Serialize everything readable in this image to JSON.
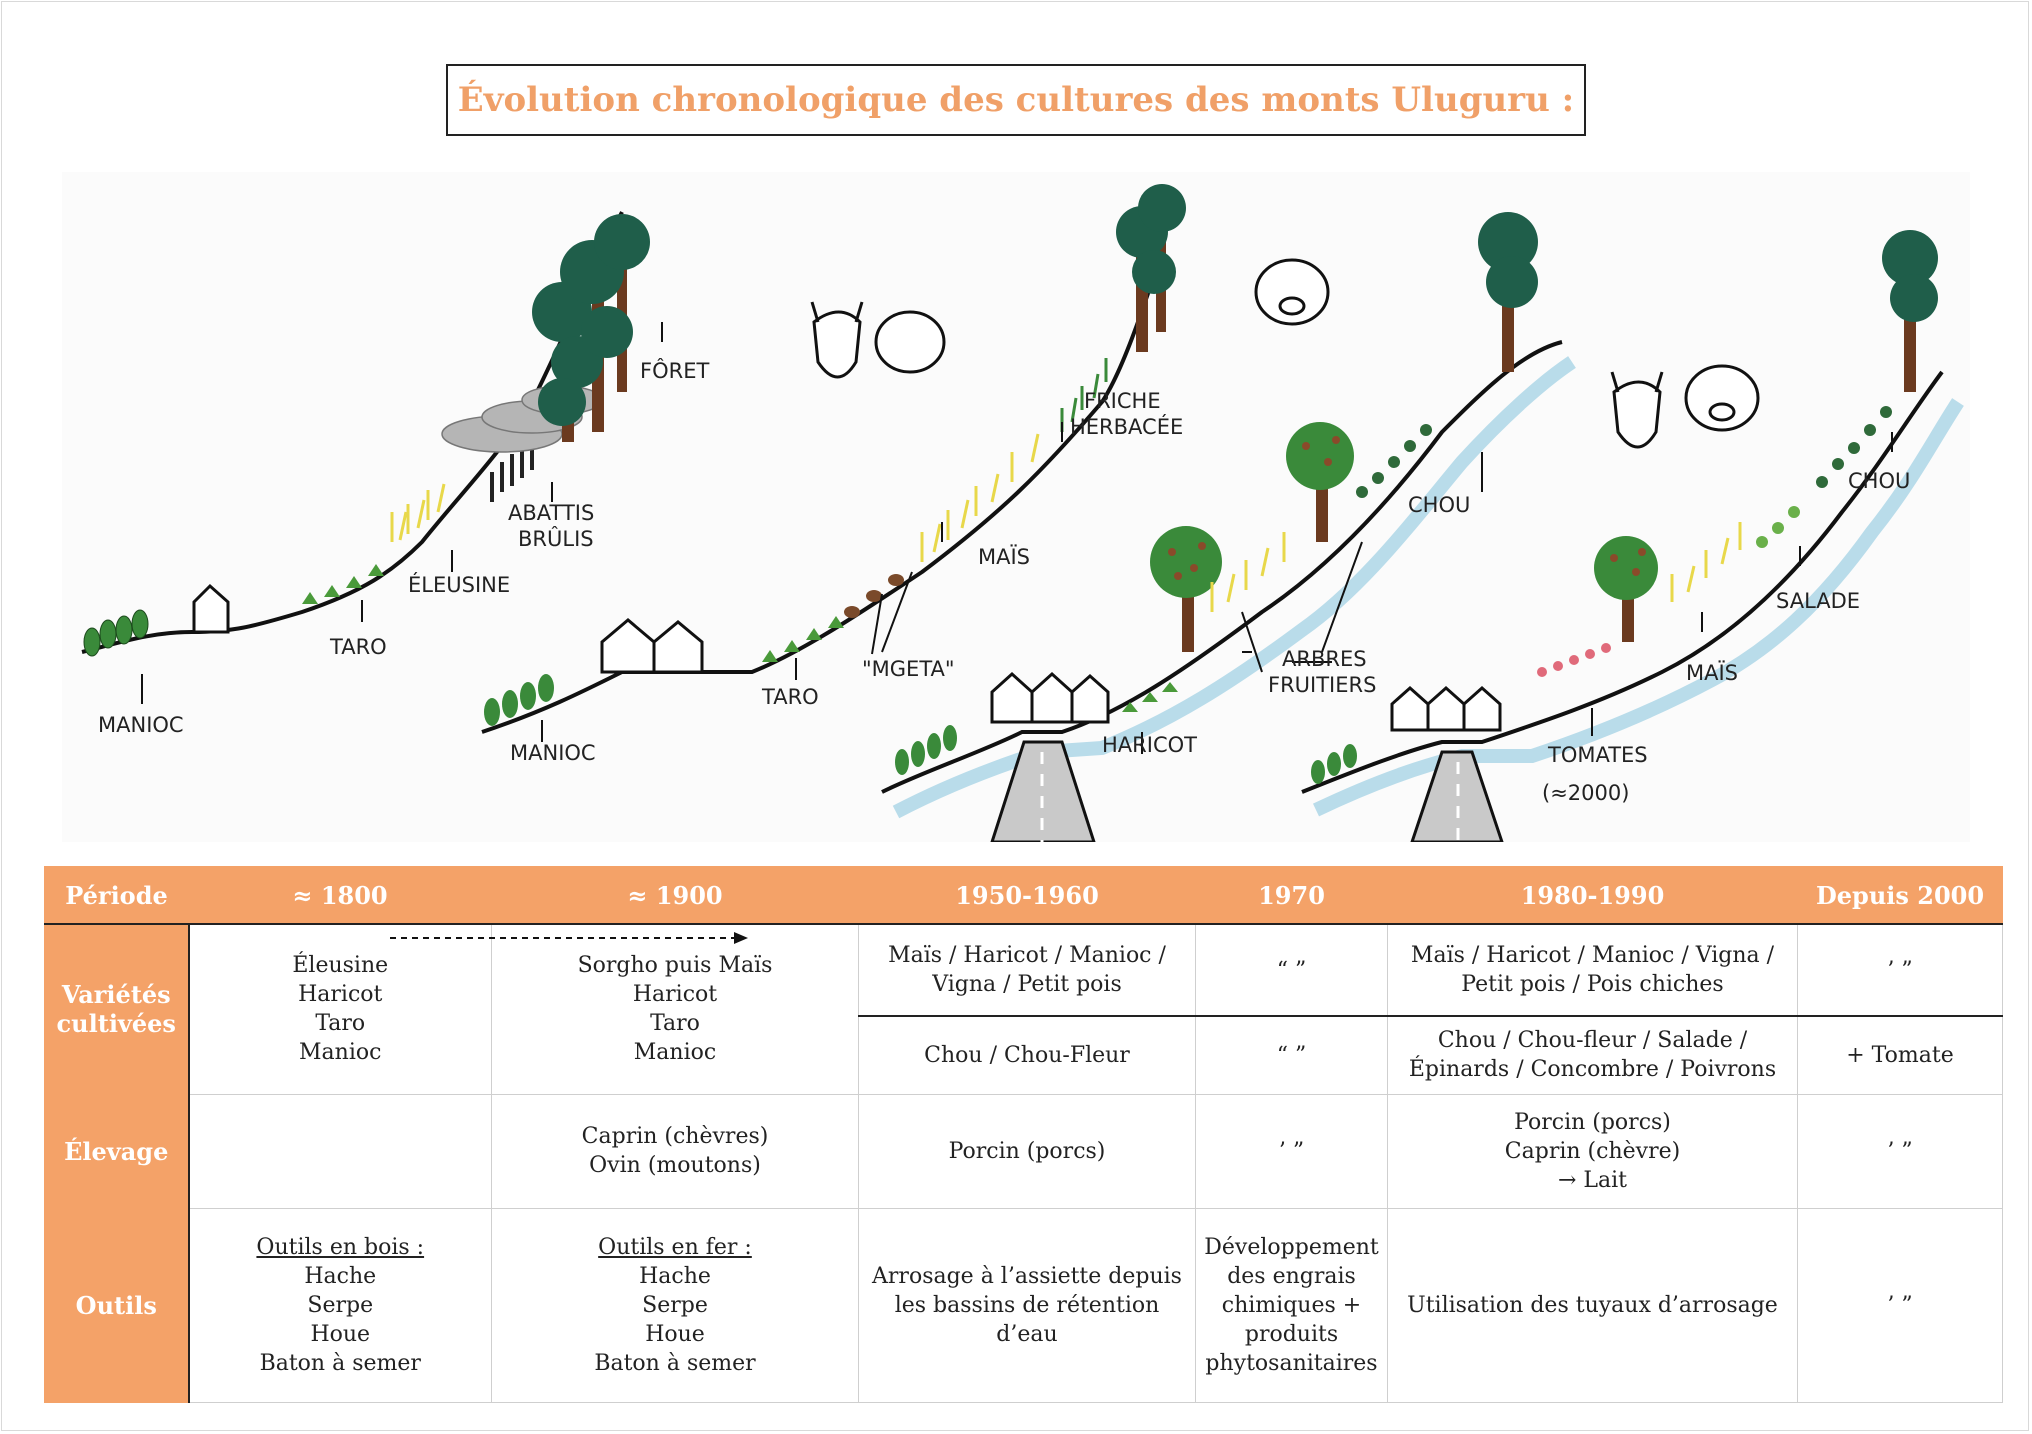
{
  "title": "Évolution chronologique des cultures des monts Uluguru :",
  "illustration": {
    "panel1": {
      "labels": {
        "manioc": "MANIOC",
        "taro": "TARO",
        "eleusine": "ÉLEUSINE",
        "abattis_1": "ABATTIS",
        "abattis_2": "BRÛLIS",
        "foret": "FÔRET"
      }
    },
    "panel2": {
      "labels": {
        "manioc": "MANIOC",
        "taro": "TARO",
        "mgeta": "\"MGETA\"",
        "mais": "MAÏS",
        "friche_1": "FRICHE",
        "friche_2": "HERBACÉE"
      }
    },
    "panel3": {
      "labels": {
        "haricot": "HARICOT",
        "arbres_1": "ARBRES",
        "arbres_2": "FRUITIERS",
        "chou": "CHOU"
      }
    },
    "panel4": {
      "labels": {
        "tomates_1": "TOMATES",
        "tomates_2": "(≈2000)",
        "mais": "MAÏS",
        "salade": "SALADE",
        "chou": "CHOU"
      }
    },
    "colors": {
      "tree": "#1f5e4a",
      "trunk": "#6b3a1f",
      "crop_green": "#3a8a3a",
      "crop_yellow": "#e8d84a",
      "river": "#b9dcea",
      "road": "#9a9a9a",
      "smoke": "#9a9a9a",
      "fruit": "#8a4a2a",
      "tomato": "#e06a7a"
    }
  },
  "table": {
    "headers": [
      "Période",
      "≈ 1800",
      "≈ 1900",
      "1950-1960",
      "1970",
      "1980-1990",
      "Depuis 2000"
    ],
    "rows": {
      "varietes": {
        "label_1": "Variétés",
        "label_2": "cultivées",
        "c1800": [
          "Éleusine",
          "Haricot",
          "Taro",
          "Manioc"
        ],
        "c1900": [
          "Sorgho puis Maïs",
          "Haricot",
          "Taro",
          "Manioc"
        ],
        "c1950_top": [
          "Maïs / Haricot / Manioc /",
          "Vigna / Petit pois"
        ],
        "c1970_top": "“ ”",
        "c1980_top": [
          "Maïs / Haricot / Manioc / Vigna /",
          "Petit pois / Pois chiches"
        ],
        "c2000_top": "’ ”",
        "c1950_bottom": "Chou / Chou-Fleur",
        "c1970_bottom": "“ ”",
        "c1980_bottom": [
          "Chou / Chou-fleur / Salade /",
          "Épinards / Concombre / Poivrons"
        ],
        "c2000_bottom": "+ Tomate"
      },
      "elevage": {
        "label": "Élevage",
        "c1800": "",
        "c1900": [
          "Caprin (chèvres)",
          "Ovin (moutons)"
        ],
        "c1950": "Porcin (porcs)",
        "c1970": "’ ”",
        "c1980": [
          "Porcin (porcs)",
          "Caprin (chèvre)",
          "→ Lait"
        ],
        "c2000": "’ ”"
      },
      "outils": {
        "label": "Outils",
        "c1800_head": "Outils en bois :",
        "c1800": [
          "Hache",
          "Serpe",
          "Houe",
          "Baton à semer"
        ],
        "c1900_head": "Outils en fer :",
        "c1900": [
          "Hache",
          "Serpe",
          "Houe",
          "Baton à semer"
        ],
        "c1950": [
          "Arrosage à l’assiette depuis",
          "les bassins de rétention d’eau"
        ],
        "c1970": [
          "Développement",
          "des engrais",
          "chimiques +",
          "produits",
          "phytosanitaires"
        ],
        "c1980": "Utilisation des tuyaux d’arrosage",
        "c2000": "’ ”"
      }
    }
  }
}
